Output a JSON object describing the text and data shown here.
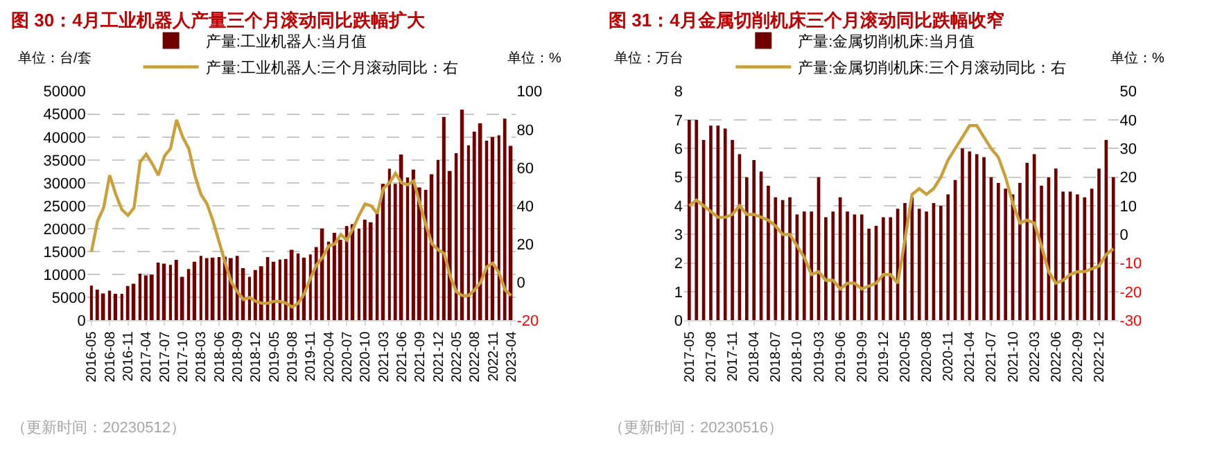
{
  "chart_data": [
    {
      "type": "bar",
      "title": "图 30：4月工业机器人产量三个月滚动同比跌幅扩大",
      "ylabel": "单位：台/套",
      "y2label": "单位：%",
      "categories": [
        "2016-05",
        null,
        null,
        "2016-08",
        null,
        null,
        "2016-11",
        null,
        null,
        "2017-04",
        null,
        null,
        "2017-07",
        null,
        null,
        "2017-10",
        null,
        null,
        "2018-03",
        null,
        null,
        "2018-06",
        null,
        null,
        "2018-09",
        null,
        null,
        "2018-12",
        null,
        null,
        "2019-05",
        null,
        null,
        "2019-08",
        null,
        null,
        "2019-11",
        null,
        null,
        "2020-04",
        null,
        null,
        "2020-07",
        null,
        null,
        "2020-10",
        null,
        null,
        "2021-03",
        null,
        null,
        "2021-06",
        null,
        null,
        "2021-09",
        null,
        null,
        "2021-12",
        null,
        null,
        "2022-05",
        null,
        null,
        "2022-08",
        null,
        null,
        "2022-11",
        null,
        null,
        "2023-04"
      ],
      "series": [
        {
          "name": "产量:工业机器人:当月值",
          "color": "#6e0000",
          "values": [
            7600,
            6700,
            5900,
            6500,
            5800,
            5800,
            7500,
            8000,
            10200,
            9800,
            10000,
            12600,
            12400,
            12100,
            13200,
            9500,
            11200,
            12800,
            14100,
            13600,
            13700,
            13800,
            13900,
            13600,
            14100,
            11400,
            9500,
            11000,
            11800,
            13800,
            12800,
            13300,
            13400,
            15400,
            14600,
            13700,
            14400,
            16000,
            20000,
            17200,
            19100,
            17600,
            20600,
            21000,
            20000,
            22000,
            21400,
            23700,
            29800,
            33100,
            29800,
            36200,
            31200,
            32900,
            29000,
            28500,
            31900,
            35000,
            44400,
            32600,
            36500,
            46000,
            38200,
            41200,
            43000,
            39200,
            40000,
            40400,
            44000,
            38100
          ]
        },
        {
          "name": "产量:工业机器人:三个月滚动同比：右",
          "type": "line",
          "axis": "y2",
          "color": "#c9a03a",
          "values": [
            16,
            32,
            39,
            56,
            46,
            38,
            35,
            39,
            63,
            67,
            62,
            56,
            66,
            70,
            85,
            76,
            70,
            56,
            46,
            41,
            32,
            21,
            10,
            0,
            -5,
            -9,
            -8,
            -10,
            -11,
            -11,
            -10,
            -10,
            -11,
            -13,
            -11,
            -6,
            2,
            9,
            13,
            19,
            20,
            25,
            22,
            28,
            35,
            41,
            40,
            36,
            49,
            52,
            57,
            52,
            51,
            53,
            41,
            30,
            20,
            17,
            15,
            3,
            -5,
            -7,
            -7,
            -4,
            0,
            8,
            10,
            5,
            -4,
            -7
          ]
        }
      ],
      "ylim": [
        0,
        50000
      ],
      "yticks": [
        0,
        5000,
        10000,
        15000,
        20000,
        25000,
        30000,
        35000,
        40000,
        45000,
        50000
      ],
      "y2lim": [
        -20,
        100
      ],
      "y2ticks": [
        -20,
        0,
        20,
        40,
        60,
        80,
        100
      ],
      "grid": "y",
      "legend": "top",
      "marker": "none",
      "annotations": [
        "（更新时间：20230512）"
      ]
    },
    {
      "type": "bar",
      "title": "图 31：4月金属切削机床三个月滚动同比跌幅收窄",
      "ylabel": "单位：万台",
      "y2label": "单位：%",
      "categories": [
        "2017-05",
        null,
        null,
        "2017-08",
        null,
        null,
        "2017-11",
        null,
        null,
        "2018-04",
        null,
        null,
        "2018-07",
        null,
        null,
        "2018-10",
        null,
        null,
        "2019-03",
        null,
        null,
        "2019-06",
        null,
        null,
        "2019-09",
        null,
        null,
        "2019-12",
        null,
        null,
        "2020-05",
        null,
        null,
        "2020-08",
        null,
        null,
        "2020-11",
        null,
        null,
        "2021-04",
        null,
        null,
        "2021-07",
        null,
        null,
        "2021-10",
        null,
        null,
        "2022-03",
        null,
        null,
        "2022-06",
        null,
        null,
        "2022-09",
        null,
        null,
        "2022-12",
        null,
        null
      ],
      "series": [
        {
          "name": "产量:金属切削机床:当月值",
          "color": "#6e0000",
          "values": [
            7.0,
            7.0,
            6.3,
            6.8,
            6.8,
            6.7,
            6.3,
            5.8,
            5.0,
            5.6,
            5.2,
            4.7,
            4.3,
            4.2,
            4.3,
            3.7,
            3.8,
            3.8,
            5.0,
            3.6,
            3.8,
            4.3,
            3.8,
            3.7,
            3.7,
            3.2,
            3.3,
            3.6,
            3.6,
            3.9,
            4.1,
            4.3,
            3.9,
            3.8,
            4.1,
            4.0,
            4.4,
            4.9,
            6.0,
            5.9,
            5.8,
            5.7,
            5.0,
            4.8,
            4.6,
            4.4,
            4.8,
            5.5,
            5.8,
            4.7,
            5.0,
            5.3,
            4.5,
            4.5,
            4.4,
            4.3,
            4.6,
            5.3,
            6.3,
            5.0
          ]
        },
        {
          "name": "产量:金属切削机床:三个月滚动同比：右",
          "type": "line",
          "axis": "y2",
          "color": "#c9a03a",
          "values": [
            10,
            12,
            10,
            8,
            6,
            6,
            7,
            10,
            7,
            7,
            6,
            5,
            3,
            0,
            0,
            -4,
            -8,
            -14,
            -13,
            -16,
            -16,
            -19,
            -17,
            -17,
            -19,
            -18,
            -17,
            -14,
            -14,
            -17,
            -2,
            14,
            16,
            14,
            16,
            20,
            26,
            30,
            34,
            38,
            38,
            34,
            30,
            27,
            20,
            11,
            4,
            5,
            4,
            -4,
            -13,
            -17,
            -16,
            -14,
            -13,
            -13,
            -12,
            -11,
            -7,
            -5
          ]
        }
      ],
      "ylim": [
        0,
        8
      ],
      "yticks": [
        0,
        1,
        2,
        3,
        4,
        5,
        6,
        7,
        8
      ],
      "y2lim": [
        -30,
        50
      ],
      "y2ticks": [
        -30,
        -20,
        -10,
        0,
        10,
        20,
        30,
        40,
        50
      ],
      "grid": "y",
      "legend": "top",
      "marker": "none",
      "annotations": [
        "（更新时间：20230516）"
      ]
    }
  ]
}
